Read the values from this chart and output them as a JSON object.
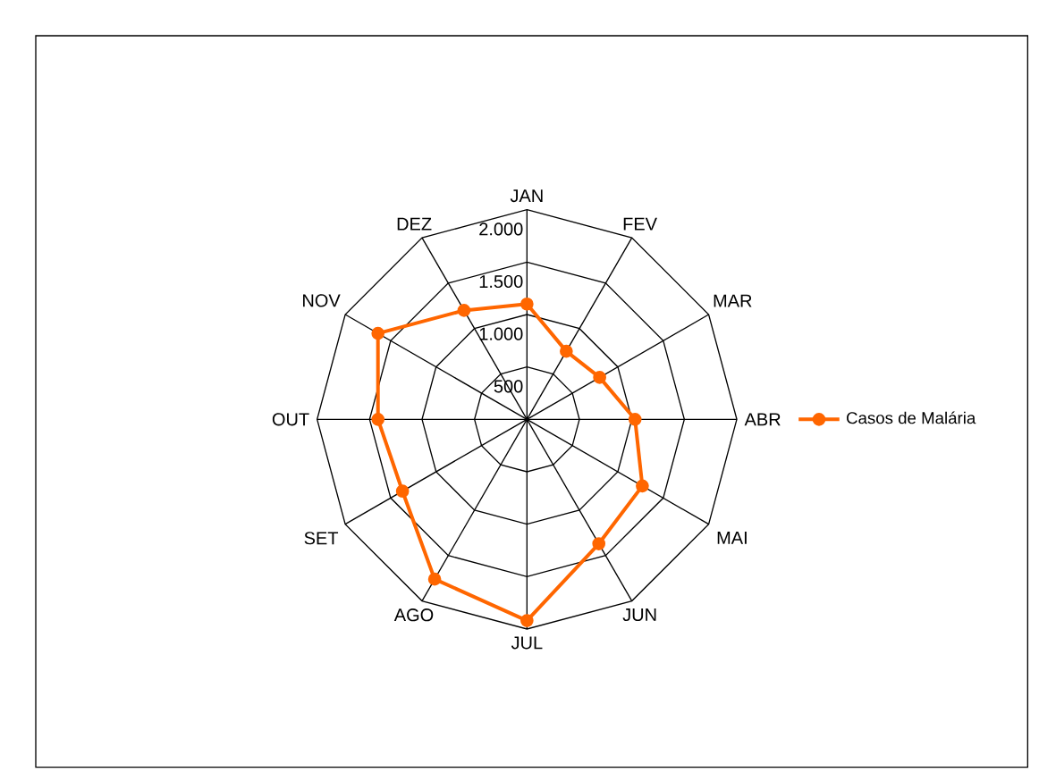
{
  "chart_data": {
    "type": "radar",
    "categories": [
      "JAN",
      "FEV",
      "MAR",
      "ABR",
      "MAI",
      "JUN",
      "JUL",
      "AGO",
      "SET",
      "OUT",
      "NOV",
      "DEZ"
    ],
    "series": [
      {
        "name": "Casos de Malária",
        "color": "#ff6600",
        "values": [
          1100,
          750,
          800,
          1030,
          1270,
          1370,
          1920,
          1760,
          1370,
          1420,
          1640,
          1200
        ]
      }
    ],
    "ylim": [
      0,
      2000
    ],
    "yticks": [
      {
        "value": 500,
        "label": "500"
      },
      {
        "value": 1000,
        "label": "1.000"
      },
      {
        "value": 1500,
        "label": "1.500"
      },
      {
        "value": 2000,
        "label": "2.000"
      }
    ],
    "grid": true,
    "legend": "right",
    "marker": "circle",
    "line_style": "solid"
  }
}
